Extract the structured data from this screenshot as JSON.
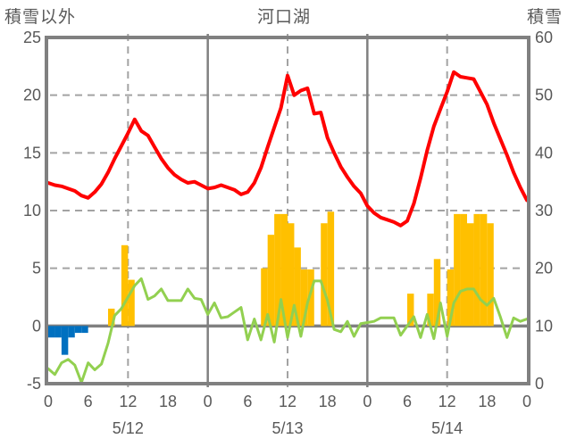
{
  "header": {
    "left_axis_title": "積雪以外",
    "title": "河口湖",
    "right_axis_title": "積雪"
  },
  "chart_data": {
    "type": "line+bar weather observation combo chart",
    "title": "河口湖",
    "x_axis": {
      "total_hours": 72,
      "tick_interval_hours": 6,
      "hour_tick_labels": [
        "0",
        "6",
        "12",
        "18",
        "0",
        "6",
        "12",
        "18",
        "0",
        "6",
        "12",
        "18",
        "0"
      ],
      "date_labels": [
        "5/12",
        "5/13",
        "5/14"
      ],
      "solid_vline_hours": [
        24,
        48
      ],
      "dashed_vline_hours": [
        12,
        36,
        60
      ]
    },
    "left_axis": {
      "title": "積雪以外",
      "min": -5,
      "max": 25,
      "tick_labels": [
        "25",
        "20",
        "15",
        "10",
        "5",
        "0",
        "-5"
      ],
      "tick_values": [
        25,
        20,
        15,
        10,
        5,
        0,
        -5
      ],
      "dashed_gridline_values": [
        20,
        15,
        10,
        5
      ],
      "solid_gridline_values": [
        0
      ]
    },
    "right_axis": {
      "title": "積雪",
      "min": 0,
      "max": 60,
      "tick_labels": [
        "60",
        "50",
        "40",
        "30",
        "20",
        "10",
        "0"
      ]
    },
    "series": [
      {
        "name": "temperature-line",
        "type": "line",
        "color": "#FF0000",
        "axis": "left",
        "hourly": [
          12.4,
          12.2,
          12.1,
          11.9,
          11.7,
          11.3,
          11.1,
          11.6,
          12.3,
          13.3,
          14.5,
          15.6,
          16.7,
          17.9,
          16.9,
          16.5,
          15.5,
          14.5,
          13.7,
          13.1,
          12.7,
          12.4,
          12.5,
          12.2,
          11.9,
          12.0,
          12.2,
          12.0,
          11.8,
          11.4,
          11.6,
          12.4,
          13.7,
          15.5,
          17.2,
          18.9,
          21.7,
          20.0,
          20.4,
          20.6,
          18.4,
          18.5,
          16.3,
          15.0,
          13.8,
          12.9,
          12.1,
          11.5,
          10.4,
          9.8,
          9.4,
          9.2,
          9.0,
          8.7,
          9.1,
          10.6,
          12.8,
          15.2,
          17.3,
          18.8,
          20.3,
          22.0,
          21.6,
          21.5,
          21.4,
          20.3,
          19.2,
          17.6,
          16.2,
          14.8,
          13.3,
          12.0,
          10.9
        ]
      },
      {
        "name": "wind-speed-line",
        "type": "line",
        "color": "#92D050",
        "axis": "left",
        "hourly": [
          -3.7,
          -4.2,
          -3.2,
          -2.9,
          -3.4,
          -4.9,
          -3.2,
          -3.8,
          -3.3,
          -1.5,
          0.9,
          1.5,
          2.5,
          3.5,
          4.1,
          2.3,
          2.6,
          3.2,
          2.2,
          2.2,
          2.2,
          3.2,
          2.4,
          2.3,
          1.0,
          2.0,
          0.7,
          0.8,
          1.2,
          1.6,
          -1.2,
          0.6,
          -1.2,
          1.0,
          -1.4,
          2.3,
          -1.0,
          1.8,
          -0.9,
          2.0,
          3.9,
          3.9,
          2.2,
          -0.3,
          -0.5,
          0.4,
          -0.9,
          0.2,
          0.3,
          0.4,
          0.7,
          0.7,
          0.7,
          -0.8,
          0.0,
          0.8,
          -1.0,
          1.0,
          -1.1,
          2.0,
          -0.9,
          2.0,
          3.0,
          3.2,
          3.2,
          2.3,
          1.8,
          2.4,
          0.8,
          -1.0,
          0.7,
          0.4,
          0.6
        ]
      },
      {
        "name": "sunshine-bars",
        "type": "bar-up",
        "color": "#FFC000",
        "axis": "left",
        "hourly": [
          0,
          0,
          0,
          0,
          0,
          0,
          0,
          0,
          0,
          1.5,
          0,
          7.0,
          4.0,
          0,
          0,
          0,
          0,
          0,
          0,
          0,
          0,
          0,
          0,
          0,
          0,
          0,
          0,
          0,
          0,
          0,
          0,
          0,
          5.0,
          7.9,
          9.7,
          9.7,
          8.9,
          6.8,
          4.9,
          4.9,
          0,
          8.9,
          9.9,
          0,
          0,
          0,
          0,
          0,
          0,
          0,
          0,
          0,
          0,
          0,
          2.8,
          0,
          0,
          2.8,
          5.8,
          0,
          4.9,
          9.7,
          9.7,
          8.9,
          9.7,
          9.7,
          8.9,
          0,
          0,
          0,
          0,
          0
        ]
      },
      {
        "name": "precipitation-bars",
        "type": "bar-down",
        "color": "#0070C0",
        "axis": "left",
        "hourly": [
          1.0,
          1.0,
          2.5,
          1.0,
          0.6,
          0.6,
          0,
          0,
          0,
          0,
          0,
          0,
          0,
          0,
          0,
          0,
          0,
          0,
          0,
          0,
          0,
          0,
          0,
          0,
          0,
          0,
          0,
          0,
          0,
          0,
          0,
          0,
          0,
          0,
          0,
          0,
          0,
          0,
          0,
          0,
          0,
          0,
          0,
          0,
          0,
          0,
          0,
          0,
          0,
          0,
          0,
          0,
          0,
          0,
          0,
          0,
          0,
          0,
          0,
          0,
          0,
          0,
          0,
          0,
          0,
          0,
          0,
          0,
          0,
          0,
          0,
          0
        ]
      }
    ],
    "style": {
      "frame_color": "#808080",
      "grid_color": "#A3A3A3",
      "zero_line_color": "#808080",
      "text_color": "#595959"
    }
  }
}
